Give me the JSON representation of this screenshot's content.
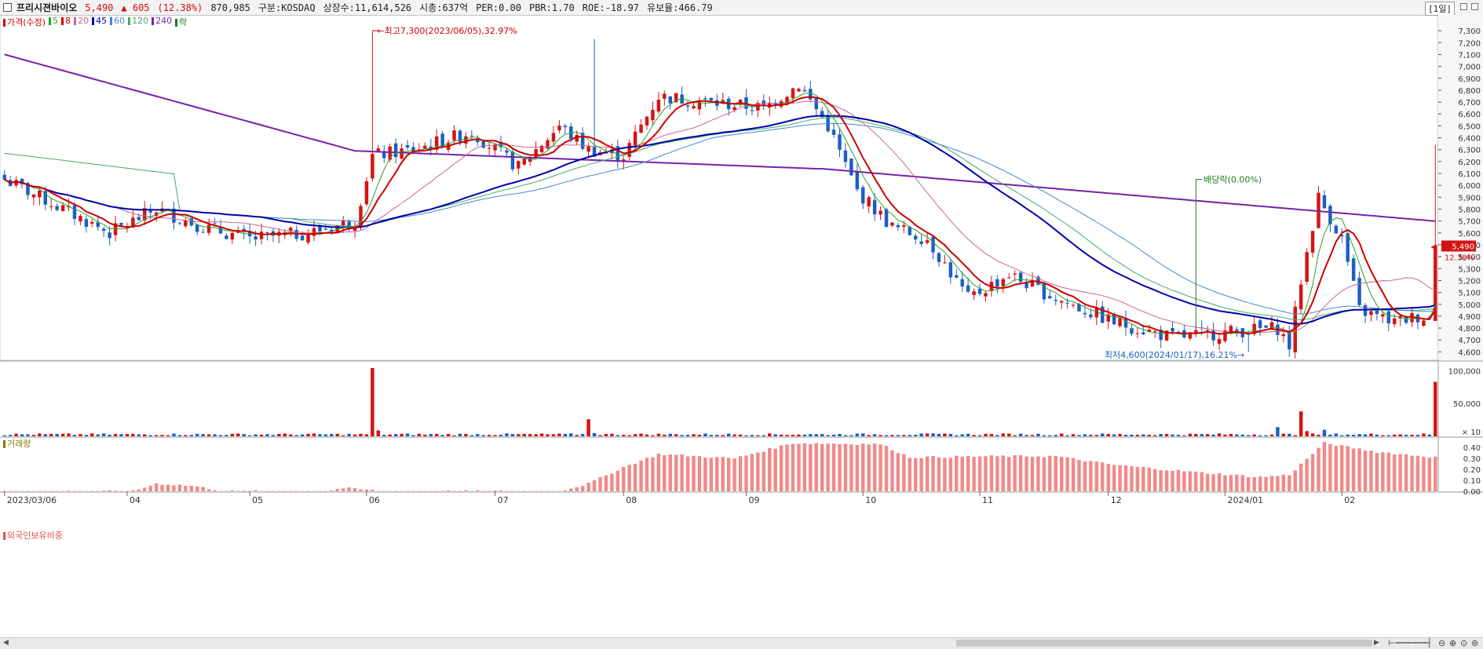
{
  "header": {
    "name": "프리시젼바이오",
    "price": "5,490",
    "change": "▲ 605",
    "change_pct": "(12.38%)",
    "volume": "870,985",
    "market": "구분:KOSDAQ",
    "shares": "상장수:11,614,526",
    "mcap": "시총:637억",
    "per": "PER:0.00",
    "pbr": "PBR:1.70",
    "roe": "ROE:-18.97",
    "reserve": "유보율:466.79",
    "timeframe": "[1일]"
  },
  "legend": [
    {
      "label": "가격(수정)",
      "color": "#cc0000"
    },
    {
      "label": "5",
      "color": "#2ca02c"
    },
    {
      "label": "8",
      "color": "#cc0000"
    },
    {
      "label": "20",
      "color": "#cc6699"
    },
    {
      "label": "45",
      "color": "#0000aa"
    },
    {
      "label": "60",
      "color": "#4488cc"
    },
    {
      "label": "120",
      "color": "#44aa66"
    },
    {
      "label": "240",
      "color": "#7722aa"
    },
    {
      "label": "락",
      "color": "#227722"
    }
  ],
  "volume_title": "거래량",
  "foreign_title": "외국인보유비중",
  "annotations": {
    "high": "최고7,300(2023/06/05),32.97%",
    "low": "최저4,600(2024/01/17),16.21%",
    "dividend": "배당락(0.00%)"
  },
  "price_badge": {
    "value": "5,490",
    "pct": "12.38%"
  },
  "chart_data": {
    "type": "candlestick",
    "price_axis": {
      "ticks": [
        4600,
        4700,
        4800,
        4900,
        5000,
        5100,
        5200,
        5300,
        5400,
        5500,
        5600,
        5700,
        5800,
        5900,
        6000,
        6100,
        6200,
        6300,
        6400,
        6500,
        6600,
        6700,
        6800,
        6900,
        7000,
        7100,
        7200,
        7300
      ],
      "labels": [
        "4,600",
        "4,700",
        "4,800",
        "4,900",
        "5,000",
        "5,100",
        "5,200",
        "5,300",
        "5,400",
        "5,500",
        "5,600",
        "5,700",
        "5,800",
        "5,900",
        "6,000",
        "6,100",
        "6,200",
        "6,300",
        "6,400",
        "6,500",
        "6,600",
        "6,700",
        "6,800",
        "6,900",
        "7,000",
        "7,100",
        "7,200",
        "7,300"
      ]
    },
    "volume_axis": {
      "ticks": [
        100000,
        50000
      ],
      "labels": [
        "100,000",
        "50,000"
      ],
      "unit": "× 10"
    },
    "foreign_axis": {
      "ticks": [
        0.4,
        0.3,
        0.2,
        0.1,
        0.0
      ],
      "labels": [
        "0.40",
        "0.30",
        "0.20",
        "0.10",
        "0.00"
      ]
    },
    "months": [
      "2023/03/06",
      "04",
      "05",
      "06",
      "07",
      "08",
      "09",
      "10",
      "11",
      "12",
      "2024/01",
      "02"
    ],
    "anchors": [
      {
        "d": 0,
        "v": 6050
      },
      {
        "d": 8,
        "v": 5850
      },
      {
        "d": 18,
        "v": 5600
      },
      {
        "d": 26,
        "v": 5800
      },
      {
        "d": 34,
        "v": 5650
      },
      {
        "d": 42,
        "v": 5550
      },
      {
        "d": 52,
        "v": 5600
      },
      {
        "d": 60,
        "v": 5700
      },
      {
        "d": 63,
        "v": 6250
      },
      {
        "d": 70,
        "v": 6300
      },
      {
        "d": 80,
        "v": 6450
      },
      {
        "d": 88,
        "v": 6150
      },
      {
        "d": 95,
        "v": 6500
      },
      {
        "d": 100,
        "v": 6300
      },
      {
        "d": 106,
        "v": 6250
      },
      {
        "d": 112,
        "v": 6750
      },
      {
        "d": 120,
        "v": 6700
      },
      {
        "d": 130,
        "v": 6650
      },
      {
        "d": 136,
        "v": 6850
      },
      {
        "d": 141,
        "v": 6500
      },
      {
        "d": 146,
        "v": 5950
      },
      {
        "d": 152,
        "v": 5650
      },
      {
        "d": 158,
        "v": 5550
      },
      {
        "d": 165,
        "v": 5050
      },
      {
        "d": 172,
        "v": 5250
      },
      {
        "d": 180,
        "v": 5050
      },
      {
        "d": 190,
        "v": 4850
      },
      {
        "d": 200,
        "v": 4720
      },
      {
        "d": 212,
        "v": 4780
      },
      {
        "d": 218,
        "v": 4800
      },
      {
        "d": 220,
        "v": 4650
      },
      {
        "d": 222,
        "v": 5200
      },
      {
        "d": 225,
        "v": 5900
      },
      {
        "d": 229,
        "v": 5550
      },
      {
        "d": 232,
        "v": 4950
      },
      {
        "d": 238,
        "v": 4850
      },
      {
        "d": 242,
        "v": 4900
      },
      {
        "d": 244,
        "v": 4880
      },
      {
        "d": 245,
        "v": 5490
      }
    ],
    "volume_spikes": [
      {
        "d": 63,
        "v": 104000
      },
      {
        "d": 100,
        "v": 26000
      },
      {
        "d": 222,
        "v": 38000
      },
      {
        "d": 245,
        "v": 83000
      }
    ],
    "foreign_curve": [
      {
        "d": 0,
        "v": 0.0
      },
      {
        "d": 22,
        "v": 0.0
      },
      {
        "d": 26,
        "v": 0.07
      },
      {
        "d": 32,
        "v": 0.05
      },
      {
        "d": 38,
        "v": 0.0
      },
      {
        "d": 55,
        "v": 0.0
      },
      {
        "d": 58,
        "v": 0.03
      },
      {
        "d": 65,
        "v": 0.0
      },
      {
        "d": 95,
        "v": 0.0
      },
      {
        "d": 100,
        "v": 0.07
      },
      {
        "d": 106,
        "v": 0.22
      },
      {
        "d": 112,
        "v": 0.34
      },
      {
        "d": 125,
        "v": 0.3
      },
      {
        "d": 135,
        "v": 0.44
      },
      {
        "d": 150,
        "v": 0.43
      },
      {
        "d": 155,
        "v": 0.31
      },
      {
        "d": 170,
        "v": 0.32
      },
      {
        "d": 180,
        "v": 0.32
      },
      {
        "d": 190,
        "v": 0.24
      },
      {
        "d": 205,
        "v": 0.17
      },
      {
        "d": 215,
        "v": 0.13
      },
      {
        "d": 220,
        "v": 0.15
      },
      {
        "d": 226,
        "v": 0.44
      },
      {
        "d": 235,
        "v": 0.36
      },
      {
        "d": 245,
        "v": 0.31
      }
    ],
    "moving_averages": [
      "5",
      "8",
      "20",
      "45",
      "60",
      "120",
      "240"
    ]
  }
}
